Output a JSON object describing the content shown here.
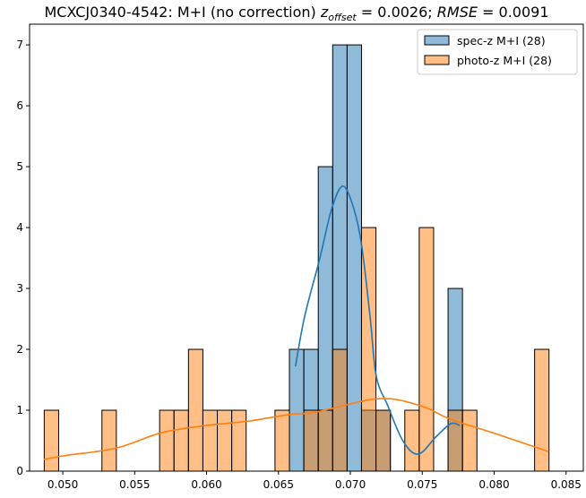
{
  "chart_data": {
    "type": "bar",
    "title": {
      "prefix": "MCXCJ0340-4542: M+I (no correction) ",
      "z_symbol": "z",
      "z_subscript": "offset",
      "z_value": " = 0.0026; ",
      "rmse_symbol": "RMSE",
      "rmse_value": " = 0.0091"
    },
    "xlabel": "",
    "ylabel": "",
    "xlim": [
      0.04769,
      0.0862
    ],
    "ylim": [
      0,
      7.34
    ],
    "xticks": [
      "0.050",
      "0.055",
      "0.060",
      "0.065",
      "0.070",
      "0.075",
      "0.080",
      "0.085"
    ],
    "xtick_values": [
      0.05,
      0.055,
      0.06,
      0.065,
      0.07,
      0.075,
      0.08,
      0.085
    ],
    "yticks": [
      "0",
      "1",
      "2",
      "3",
      "4",
      "5",
      "6",
      "7"
    ],
    "ytick_values": [
      0,
      1,
      2,
      3,
      4,
      5,
      6,
      7
    ],
    "grid": false,
    "legend_position": "top-right",
    "bin_start": 0.04871,
    "bin_width": 0.001003,
    "series": [
      {
        "name": "spec-z M+I (28)",
        "color": "#1f77b4",
        "counts": [
          0,
          0,
          0,
          0,
          0,
          0,
          0,
          0,
          0,
          0,
          0,
          0,
          0,
          0,
          0,
          0,
          0,
          2,
          2,
          5,
          7,
          7,
          1,
          1,
          0,
          0,
          0,
          0,
          3,
          0,
          0,
          0,
          0,
          0,
          0
        ],
        "kde": [
          [
            0.06618,
            1.72
          ],
          [
            0.06682,
            2.54
          ],
          [
            0.06788,
            3.5
          ],
          [
            0.06869,
            4.3
          ],
          [
            0.06944,
            4.68
          ],
          [
            0.07012,
            4.4
          ],
          [
            0.07075,
            3.76
          ],
          [
            0.07137,
            2.54
          ],
          [
            0.0718,
            1.56
          ],
          [
            0.07261,
            1.07
          ],
          [
            0.07367,
            0.49
          ],
          [
            0.07473,
            0.28
          ],
          [
            0.07598,
            0.57
          ],
          [
            0.07698,
            0.78
          ],
          [
            0.0776,
            0.75
          ]
        ]
      },
      {
        "name": "photo-z M+I (28)",
        "color": "#ff7f0e",
        "counts": [
          1,
          0,
          0,
          0,
          1,
          0,
          0,
          0,
          1,
          1,
          2,
          1,
          1,
          1,
          0,
          0,
          1,
          0,
          1,
          1,
          2,
          0,
          4,
          1,
          0,
          1,
          4,
          0,
          1,
          1,
          0,
          0,
          0,
          0,
          2
        ],
        "kde": [
          [
            0.04869,
            0.19
          ],
          [
            0.05,
            0.25
          ],
          [
            0.05374,
            0.38
          ],
          [
            0.05685,
            0.63
          ],
          [
            0.05997,
            0.75
          ],
          [
            0.0629,
            0.82
          ],
          [
            0.06576,
            0.93
          ],
          [
            0.06761,
            0.97
          ],
          [
            0.072,
            1.19
          ],
          [
            0.07492,
            1.07
          ],
          [
            0.07698,
            0.85
          ],
          [
            0.0799,
            0.63
          ],
          [
            0.0838,
            0.32
          ]
        ]
      }
    ]
  }
}
